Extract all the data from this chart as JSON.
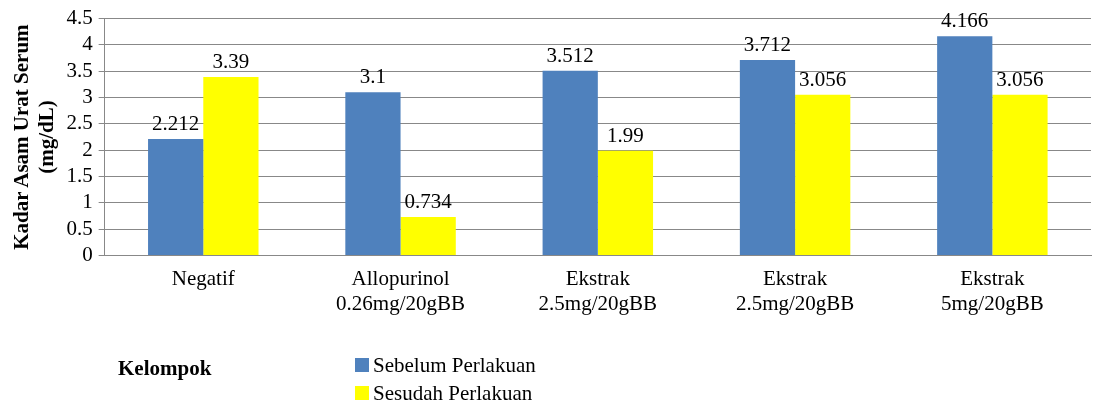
{
  "chart_data": {
    "type": "bar",
    "xlabel": "Kelompok",
    "ylabel": "Kadar Asam Urat Serum (mg/dL)",
    "categories": [
      "Negatif",
      "Allopurinol 0.26mg/20gBB",
      "Ekstrak 2.5mg/20gBB",
      "Ekstrak 2.5mg/20gBB",
      "Ekstrak 5mg/20gBB"
    ],
    "series": [
      {
        "name": "Sebelum Perlakuan",
        "color": "#4f81bd",
        "values": [
          2.212,
          3.1,
          3.512,
          3.712,
          4.166
        ]
      },
      {
        "name": "Sesudah Perlakuan",
        "color": "#ffff00",
        "values": [
          3.39,
          0.734,
          1.99,
          3.056,
          3.056
        ]
      }
    ],
    "ylim": [
      0,
      4.5
    ],
    "yticks": [
      0,
      0.5,
      1,
      1.5,
      2,
      2.5,
      3,
      3.5,
      4,
      4.5
    ],
    "grid": "y",
    "legend": "bottom",
    "data_labels": true
  }
}
